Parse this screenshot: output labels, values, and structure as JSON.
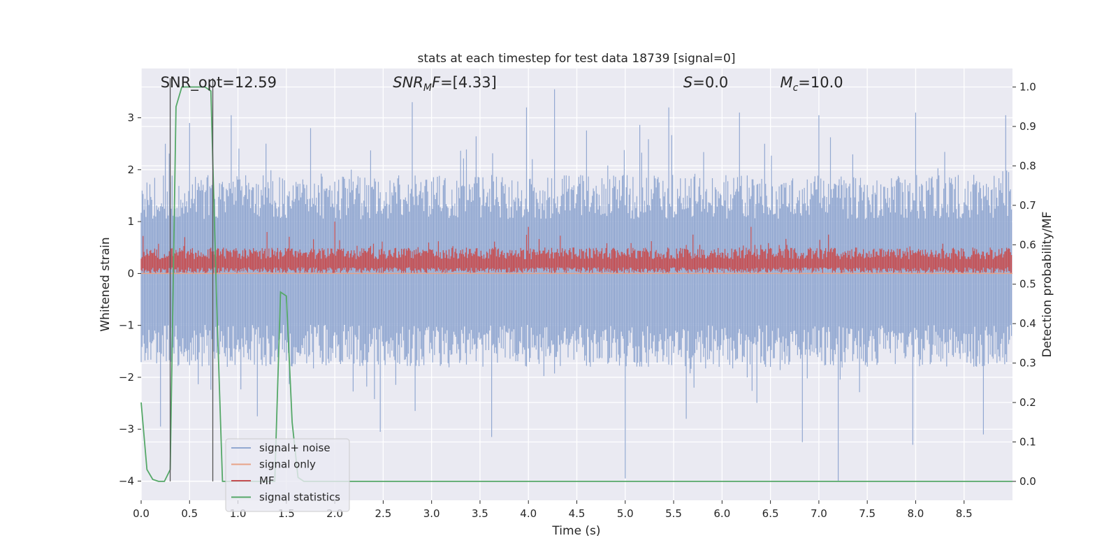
{
  "chart_data": {
    "type": "line",
    "title": "stats at each timestep for test data 18739 [signal=0]",
    "xlabel": "Time (s)",
    "ylabel": "Whitened strain",
    "ylabel_right": "Detection probability/MF",
    "xlim": [
      0.0,
      9.0
    ],
    "ylim": [
      -4.37,
      3.95
    ],
    "ylim_right": [
      -0.048,
      1.047
    ],
    "x_ticks": [
      0.0,
      0.5,
      1.0,
      1.5,
      2.0,
      2.5,
      3.0,
      3.5,
      4.0,
      4.5,
      5.0,
      5.5,
      6.0,
      6.5,
      7.0,
      7.5,
      8.0,
      8.5
    ],
    "x_tick_labels": [
      "0.0",
      "0.5",
      "1.0",
      "1.5",
      "2.0",
      "2.5",
      "3.0",
      "3.5",
      "4.0",
      "4.5",
      "5.0",
      "5.5",
      "6.0",
      "6.5",
      "7.0",
      "7.5",
      "8.0",
      "8.5"
    ],
    "y_ticks": [
      -4,
      -3,
      -2,
      -1,
      0,
      1,
      2,
      3
    ],
    "y_tick_labels": [
      "−4",
      "−3",
      "−2",
      "−1",
      "0",
      "1",
      "2",
      "3"
    ],
    "y_right_ticks": [
      0.0,
      0.1,
      0.2,
      0.3,
      0.4,
      0.5,
      0.6,
      0.7,
      0.8,
      0.9,
      1.0
    ],
    "y_right_tick_labels": [
      "0.0",
      "0.1",
      "0.2",
      "0.3",
      "0.4",
      "0.5",
      "0.6",
      "0.7",
      "0.8",
      "0.9",
      "1.0"
    ],
    "grid": true,
    "legend_position": "lower-left",
    "annotations": [
      {
        "text": "SNR_opt=12.59",
        "x": 0.2
      },
      {
        "text": "SNR_MF=[4.33]",
        "x": 2.6
      },
      {
        "text": "S=0.0",
        "x": 5.6
      },
      {
        "text": "Mc=10.0",
        "x": 6.6
      }
    ],
    "vertical_markers": [
      0.3,
      0.74
    ],
    "series": [
      {
        "name": "signal+ noise",
        "axis": "left",
        "color": "#92a8d1",
        "envelope": {
          "typical_upper": 1.9,
          "typical_lower": -1.8,
          "peaks_upper": [
            [
              0.25,
              2.5
            ],
            [
              0.5,
              2.9
            ],
            [
              0.93,
              3.05
            ],
            [
              1.75,
              2.8
            ],
            [
              2.8,
              3.3
            ],
            [
              3.98,
              3.2
            ],
            [
              4.27,
              3.55
            ],
            [
              5.45,
              3.2
            ],
            [
              6.18,
              3.1
            ],
            [
              7.0,
              3.05
            ],
            [
              8.0,
              3.1
            ],
            [
              8.93,
              3.05
            ]
          ],
          "peaks_lower": [
            [
              0.2,
              -2.95
            ],
            [
              1.2,
              -2.75
            ],
            [
              2.47,
              -3.05
            ],
            [
              3.62,
              -3.15
            ],
            [
              5.0,
              -3.95
            ],
            [
              5.63,
              -2.8
            ],
            [
              6.83,
              -3.25
            ],
            [
              7.2,
              -4.0
            ],
            [
              7.97,
              -3.3
            ],
            [
              8.7,
              -3.1
            ]
          ]
        }
      },
      {
        "name": "signal only",
        "axis": "left",
        "color": "#e8a387",
        "x": [
          0.0,
          9.0
        ],
        "y": [
          0.0,
          0.0
        ]
      },
      {
        "name": "MF",
        "axis": "left",
        "color": "#c44e52",
        "envelope": {
          "typical_upper": 0.5,
          "typical_lower": 0.0,
          "peaks_upper": [
            [
              0.45,
              0.7
            ],
            [
              1.3,
              0.8
            ],
            [
              2.0,
              1.0
            ],
            [
              4.0,
              0.9
            ],
            [
              5.7,
              0.75
            ],
            [
              6.3,
              0.9
            ],
            [
              7.1,
              0.75
            ]
          ]
        }
      },
      {
        "name": "signal statistics",
        "axis": "right",
        "color": "#55a868",
        "x": [
          0.0,
          0.06,
          0.12,
          0.18,
          0.24,
          0.3,
          0.36,
          0.42,
          0.48,
          0.54,
          0.6,
          0.66,
          0.72,
          0.78,
          0.84,
          0.9,
          0.96,
          1.02,
          1.08,
          1.14,
          1.2,
          1.26,
          1.32,
          1.38,
          1.44,
          1.5,
          1.56,
          1.62,
          1.68,
          1.8,
          2.5,
          9.0
        ],
        "y": [
          0.2,
          0.03,
          0.005,
          0.0,
          0.0,
          0.03,
          0.95,
          1.0,
          1.0,
          1.0,
          1.0,
          1.0,
          0.99,
          0.45,
          0.0,
          0.0,
          0.0,
          0.0,
          0.0,
          0.0,
          0.0,
          0.0,
          0.0,
          0.0,
          0.48,
          0.47,
          0.15,
          0.01,
          0.0,
          0.0,
          0.0,
          0.0
        ]
      }
    ]
  }
}
